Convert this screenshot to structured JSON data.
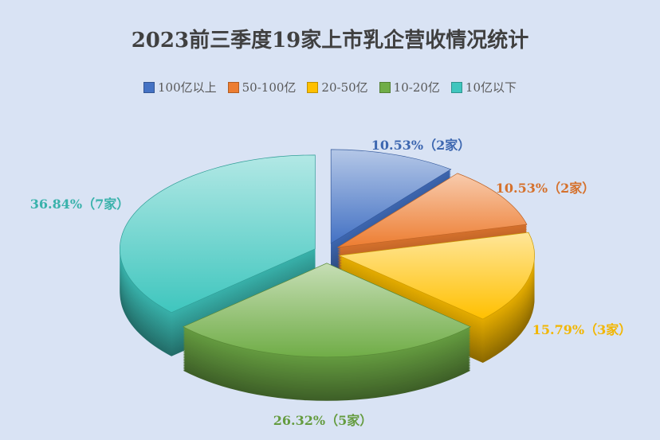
{
  "chart_data": {
    "type": "pie",
    "title": "2023前三季度19家上市乳企营收情况统计",
    "categories": [
      "100亿以上",
      "50-100亿",
      "20-50亿",
      "10-20亿",
      "10亿以下"
    ],
    "values": [
      2,
      2,
      3,
      5,
      7
    ],
    "percent": [
      10.53,
      10.53,
      15.79,
      26.32,
      36.84
    ],
    "data_labels": [
      "10.53%（2家）",
      "10.53%（2家）",
      "15.79%（3家）",
      "26.32%（5家）",
      "36.84%（7家）"
    ],
    "colors": [
      "#4472c4",
      "#ed7d31",
      "#ffc000",
      "#70ad47",
      "#3fc6be"
    ],
    "legend_position": "top",
    "style": "3d-exploded"
  }
}
